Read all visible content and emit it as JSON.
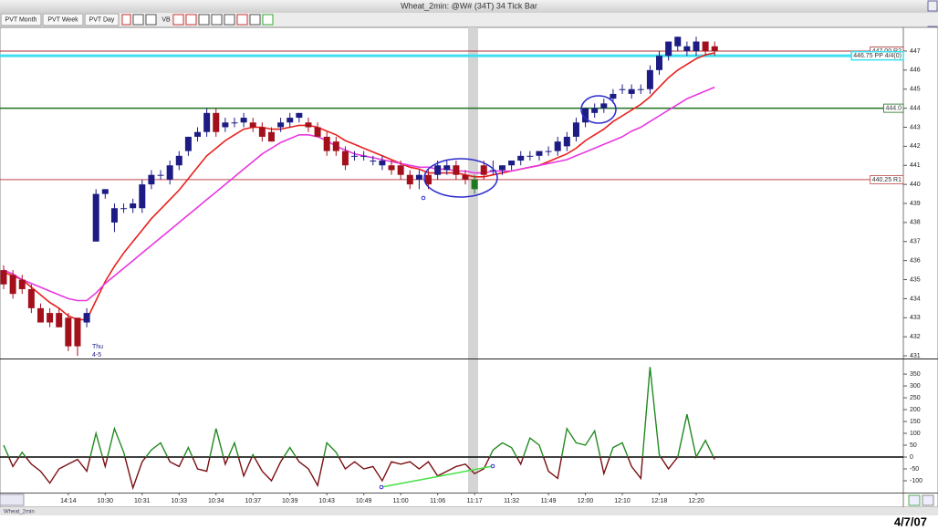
{
  "window": {
    "title": "Wheat_2min: @W# (34T) 34 Tick Bar",
    "toolbar": [
      "PVT Month",
      "PVT Week",
      "PVT Day",
      "VB"
    ],
    "tab": "Wheat_2min",
    "date": "4/7/07"
  },
  "chart_data": [
    {
      "type": "candlestick",
      "open": [
        435.5,
        435.25,
        435.0,
        434.5,
        433.5,
        433.25,
        433.25,
        433.0,
        433.0,
        432.75,
        437.0,
        439.5,
        438.0,
        438.75,
        438.75,
        438.75,
        440.0,
        440.5,
        440.25,
        441.0,
        441.75,
        442.5,
        442.75,
        443.75,
        443.0,
        443.25,
        443.25,
        443.25,
        443.0,
        442.75,
        443.0,
        443.25,
        443.5,
        443.25,
        443.0,
        442.5,
        442.25,
        441.75,
        441.5,
        441.5,
        441.25,
        441.0,
        441.0,
        441.0,
        440.5,
        440.25,
        440.5,
        440.5,
        440.75,
        441.0,
        440.5,
        439.75,
        441.0,
        440.75,
        440.75,
        441.0,
        441.25,
        441.5,
        441.5,
        441.75,
        441.75,
        442.0,
        442.5,
        443.25,
        443.75,
        444.0,
        444.5,
        445.0,
        444.75,
        445.0,
        445.0,
        446.0,
        446.75,
        447.25,
        447.0,
        447.0,
        447.5,
        447.25
      ],
      "high": [
        435.75,
        435.5,
        435.25,
        434.75,
        433.75,
        433.5,
        433.5,
        433.25,
        433.0,
        433.5,
        439.75,
        439.75,
        439.0,
        439.0,
        439.25,
        440.25,
        440.75,
        440.75,
        441.25,
        441.75,
        442.5,
        443.0,
        444.0,
        444.0,
        443.5,
        443.5,
        443.75,
        443.5,
        443.25,
        443.0,
        443.5,
        443.75,
        443.75,
        443.5,
        443.25,
        442.75,
        442.5,
        442.0,
        441.75,
        441.75,
        441.5,
        441.5,
        441.25,
        441.25,
        440.75,
        440.75,
        440.75,
        441.25,
        441.25,
        441.25,
        440.75,
        440.5,
        441.25,
        441.25,
        441.0,
        441.25,
        441.75,
        441.75,
        441.75,
        442.0,
        442.5,
        442.75,
        443.5,
        444.0,
        444.25,
        444.5,
        445.0,
        445.25,
        445.25,
        445.25,
        446.25,
        447.0,
        447.5,
        447.75,
        447.5,
        447.75,
        447.5,
        447.5
      ],
      "low": [
        434.5,
        434.0,
        434.25,
        433.25,
        432.75,
        432.5,
        432.5,
        431.25,
        431.0,
        432.5,
        437.0,
        439.25,
        437.5,
        438.5,
        438.5,
        438.5,
        439.75,
        440.25,
        440.0,
        440.75,
        441.5,
        442.25,
        442.5,
        442.5,
        442.75,
        443.0,
        443.0,
        442.75,
        442.25,
        442.25,
        442.75,
        443.0,
        443.25,
        442.75,
        442.5,
        441.5,
        441.5,
        440.75,
        441.25,
        441.25,
        441.0,
        440.75,
        440.5,
        440.25,
        439.75,
        439.75,
        439.75,
        440.25,
        440.5,
        440.25,
        440.0,
        439.5,
        440.25,
        440.5,
        440.5,
        440.75,
        441.0,
        441.25,
        441.25,
        441.5,
        441.5,
        441.75,
        442.25,
        443.0,
        443.5,
        443.75,
        444.25,
        444.75,
        444.5,
        444.75,
        444.75,
        445.75,
        446.5,
        447.0,
        446.75,
        446.75,
        446.75,
        446.75
      ],
      "close": [
        434.75,
        434.25,
        434.5,
        433.5,
        432.75,
        432.75,
        432.5,
        431.5,
        431.5,
        433.25,
        439.5,
        439.75,
        438.75,
        438.75,
        439.0,
        440.0,
        440.5,
        440.5,
        441.0,
        441.5,
        442.5,
        442.75,
        443.75,
        442.75,
        443.25,
        443.25,
        443.5,
        443.0,
        442.5,
        442.25,
        443.25,
        443.5,
        443.75,
        443.0,
        442.5,
        441.75,
        441.75,
        441.0,
        441.5,
        441.5,
        441.25,
        441.25,
        440.75,
        440.5,
        440.0,
        440.5,
        440.0,
        441.0,
        441.0,
        440.5,
        440.25,
        440.25,
        440.5,
        440.75,
        441.0,
        441.25,
        441.5,
        441.5,
        441.75,
        441.75,
        442.25,
        442.5,
        443.25,
        444.0,
        444.0,
        444.25,
        444.75,
        445.0,
        445.0,
        445.0,
        446.0,
        446.75,
        447.5,
        447.75,
        447.25,
        447.5,
        447.0,
        447.0
      ],
      "up_color": "#1c1c84",
      "down_color": "#a3101c",
      "highlight": {
        "index": 51,
        "color": "#1f7a1f"
      },
      "series": [
        {
          "color": "#e8201c",
          "values": [
            435.4,
            435.2,
            435.0,
            434.6,
            434.2,
            433.8,
            433.5,
            433.1,
            432.9,
            432.9,
            433.9,
            434.9,
            435.7,
            436.4,
            437.0,
            437.6,
            438.2,
            438.7,
            439.2,
            439.7,
            440.3,
            440.9,
            441.5,
            441.9,
            442.3,
            442.6,
            442.9,
            443.0,
            443.0,
            442.9,
            442.9,
            443.0,
            443.1,
            443.1,
            443.0,
            442.8,
            442.6,
            442.3,
            442.1,
            441.9,
            441.7,
            441.5,
            441.3,
            441.1,
            440.9,
            440.8,
            440.6,
            440.6,
            440.6,
            440.6,
            440.5,
            440.4,
            440.4,
            440.5,
            440.6,
            440.7,
            440.8,
            440.9,
            441.0,
            441.2,
            441.4,
            441.6,
            441.9,
            442.3,
            442.6,
            442.9,
            443.3,
            443.6,
            443.9,
            444.2,
            444.6,
            445.1,
            445.6,
            446.0,
            446.3,
            446.6,
            446.8,
            446.9
          ]
        },
        {
          "color": "#e838e0",
          "values": [
            435.5,
            435.3,
            435.0,
            434.8,
            434.6,
            434.4,
            434.2,
            434.0,
            433.9,
            433.9,
            434.3,
            434.8,
            435.2,
            435.6,
            436.0,
            436.4,
            436.8,
            437.2,
            437.6,
            438.0,
            438.4,
            438.8,
            439.2,
            439.6,
            440.0,
            440.4,
            440.8,
            441.2,
            441.6,
            441.9,
            442.2,
            442.4,
            442.6,
            442.6,
            442.5,
            442.3,
            442.0,
            441.8,
            441.6,
            441.5,
            441.4,
            441.3,
            441.2,
            441.1,
            441.0,
            440.9,
            440.9,
            440.8,
            440.8,
            440.7,
            440.7,
            440.6,
            440.6,
            440.7,
            440.7,
            440.7,
            440.8,
            440.9,
            441.0,
            441.1,
            441.2,
            441.3,
            441.5,
            441.7,
            441.9,
            442.1,
            442.3,
            442.5,
            442.8,
            443.0,
            443.3,
            443.6,
            443.9,
            444.2,
            444.5,
            444.7,
            444.9,
            445.1
          ]
        }
      ],
      "levels": [
        {
          "value": 447.0,
          "label": "447.00 R2",
          "color": "#a83030",
          "width": 1
        },
        {
          "value": 446.75,
          "label": "446.75 PP 4/4(0)",
          "color": "#3ee0f0",
          "width": 3
        },
        {
          "value": 444.0,
          "label": "444.0",
          "color": "#1f6f1f",
          "width": 1.5
        },
        {
          "value": 440.25,
          "label": "440.25 R1",
          "color": "#c04848",
          "width": 1
        }
      ],
      "annotations": [
        "Thu",
        "4-5"
      ],
      "ylim": [
        430.86,
        447.86
      ],
      "yticks": [
        431,
        432,
        433,
        434,
        435,
        436,
        437,
        438,
        439,
        440,
        441,
        442,
        443,
        444,
        445,
        446,
        447
      ]
    },
    {
      "type": "line",
      "categories": [
        null,
        null,
        null,
        null,
        null,
        null,
        null,
        "14:14",
        null,
        null,
        null,
        "10:30",
        null,
        null,
        null,
        "10:31",
        null,
        null,
        null,
        "10:33",
        null,
        null,
        null,
        "10:34",
        null,
        null,
        null,
        "10:37",
        null,
        null,
        null,
        "10:39",
        null,
        null,
        null,
        "10:43",
        null,
        null,
        null,
        "10:49",
        null,
        null,
        null,
        "11:00",
        null,
        null,
        null,
        "11:06",
        null,
        null,
        null,
        "11:17",
        null,
        null,
        null,
        "11:32",
        null,
        null,
        null,
        "11:49",
        null,
        null,
        null,
        "12:00",
        null,
        null,
        null,
        "12:10",
        null,
        null,
        null,
        "12:18",
        null,
        null,
        null,
        "12:20",
        null,
        null
      ],
      "values": [
        50,
        -40,
        20,
        -30,
        -60,
        -110,
        -50,
        -30,
        -10,
        -60,
        100,
        -40,
        120,
        20,
        -130,
        -20,
        30,
        60,
        -20,
        -40,
        40,
        -50,
        -60,
        120,
        -30,
        60,
        -80,
        10,
        -60,
        -100,
        -20,
        40,
        -20,
        -50,
        -120,
        60,
        20,
        -50,
        -20,
        -50,
        -40,
        -100,
        -20,
        -30,
        -20,
        -50,
        -20,
        -80,
        -60,
        -40,
        -30,
        -70,
        -50,
        30,
        60,
        40,
        -30,
        80,
        50,
        -60,
        -90,
        120,
        60,
        50,
        110,
        -70,
        40,
        60,
        -40,
        -90,
        380,
        10,
        -50,
        0,
        180,
        0,
        70,
        -10
      ],
      "pos_color": "#218a21",
      "neg_color": "#7a0f12",
      "ylim": [
        -150,
        408
      ],
      "yticks": [
        -100,
        -50,
        0,
        50,
        100,
        150,
        200,
        250,
        300,
        350
      ]
    }
  ]
}
